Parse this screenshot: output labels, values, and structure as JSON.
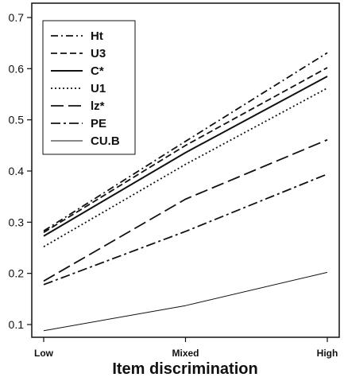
{
  "chart_data": {
    "type": "line",
    "categories": [
      "Low",
      "Mixed",
      "High"
    ],
    "xlabel": "Item discrimination",
    "ylabel": "",
    "ylim": [
      0.08,
      0.72
    ],
    "yticks": [
      "0.1",
      "0.2",
      "0.3",
      "0.4",
      "0.5",
      "0.6",
      "0.7"
    ],
    "grid": false,
    "legend_position": "top-left",
    "series": [
      {
        "name": "Ht",
        "values": [
          0.283,
          0.458,
          0.631
        ],
        "style": "dotdash",
        "color": "#111111"
      },
      {
        "name": "U3",
        "values": [
          0.28,
          0.45,
          0.602
        ],
        "style": "dashed",
        "color": "#111111"
      },
      {
        "name": "C*",
        "values": [
          0.273,
          0.436,
          0.585
        ],
        "style": "solid",
        "color": "#111111"
      },
      {
        "name": "U1",
        "values": [
          0.252,
          0.413,
          0.562
        ],
        "style": "dotted",
        "color": "#111111"
      },
      {
        "name": "lz*",
        "values": [
          0.185,
          0.345,
          0.461
        ],
        "style": "longdash",
        "color": "#111111"
      },
      {
        "name": "PE",
        "values": [
          0.178,
          0.282,
          0.394
        ],
        "style": "twodash",
        "color": "#111111"
      },
      {
        "name": "CU.B",
        "values": [
          0.088,
          0.137,
          0.202
        ],
        "style": "thin",
        "color": "#111111"
      }
    ]
  }
}
